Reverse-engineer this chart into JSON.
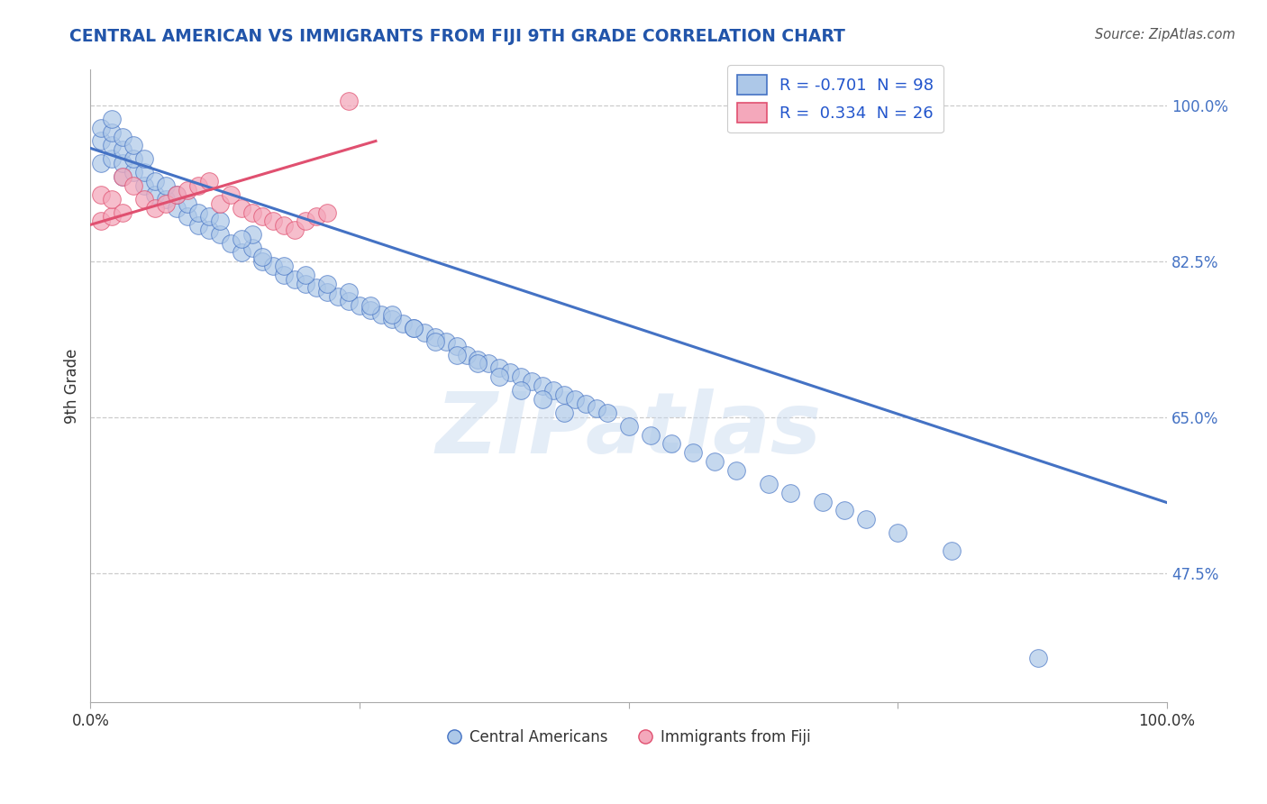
{
  "title": "CENTRAL AMERICAN VS IMMIGRANTS FROM FIJI 9TH GRADE CORRELATION CHART",
  "source_text": "Source: ZipAtlas.com",
  "ylabel": "9th Grade",
  "xlim": [
    0.0,
    1.0
  ],
  "ylim": [
    0.33,
    1.04
  ],
  "x_ticks": [
    0.0,
    0.25,
    0.5,
    0.75,
    1.0
  ],
  "x_tick_labels": [
    "0.0%",
    "",
    "",
    "",
    "100.0%"
  ],
  "y_tick_labels_right": [
    "47.5%",
    "65.0%",
    "82.5%",
    "100.0%"
  ],
  "y_ticks_right": [
    0.475,
    0.65,
    0.825,
    1.0
  ],
  "blue_color": "#adc8e8",
  "pink_color": "#f4a8bb",
  "blue_line_color": "#4472c4",
  "pink_line_color": "#e05070",
  "blue_legend_R": "R = -0.701",
  "blue_legend_N": "N = 98",
  "pink_legend_R": "R =  0.334",
  "pink_legend_N": "N = 26",
  "watermark": "ZIPatlas",
  "blue_scatter_x": [
    0.01,
    0.01,
    0.01,
    0.02,
    0.02,
    0.02,
    0.02,
    0.03,
    0.03,
    0.03,
    0.03,
    0.04,
    0.04,
    0.04,
    0.05,
    0.05,
    0.05,
    0.06,
    0.06,
    0.07,
    0.07,
    0.08,
    0.08,
    0.09,
    0.09,
    0.1,
    0.1,
    0.11,
    0.11,
    0.12,
    0.13,
    0.14,
    0.15,
    0.15,
    0.16,
    0.17,
    0.18,
    0.19,
    0.2,
    0.21,
    0.22,
    0.23,
    0.24,
    0.25,
    0.26,
    0.27,
    0.28,
    0.29,
    0.3,
    0.31,
    0.32,
    0.33,
    0.34,
    0.35,
    0.36,
    0.37,
    0.38,
    0.39,
    0.4,
    0.41,
    0.42,
    0.43,
    0.44,
    0.45,
    0.46,
    0.47,
    0.48,
    0.5,
    0.52,
    0.54,
    0.56,
    0.58,
    0.6,
    0.63,
    0.65,
    0.68,
    0.7,
    0.72,
    0.75,
    0.8,
    0.12,
    0.14,
    0.16,
    0.18,
    0.2,
    0.22,
    0.24,
    0.26,
    0.28,
    0.3,
    0.32,
    0.34,
    0.36,
    0.38,
    0.4,
    0.42,
    0.44,
    0.88
  ],
  "blue_scatter_y": [
    0.935,
    0.96,
    0.975,
    0.94,
    0.955,
    0.97,
    0.985,
    0.92,
    0.935,
    0.95,
    0.965,
    0.925,
    0.94,
    0.955,
    0.91,
    0.925,
    0.94,
    0.9,
    0.915,
    0.895,
    0.91,
    0.885,
    0.9,
    0.875,
    0.89,
    0.865,
    0.88,
    0.86,
    0.875,
    0.855,
    0.845,
    0.835,
    0.84,
    0.855,
    0.825,
    0.82,
    0.81,
    0.805,
    0.8,
    0.795,
    0.79,
    0.785,
    0.78,
    0.775,
    0.77,
    0.765,
    0.76,
    0.755,
    0.75,
    0.745,
    0.74,
    0.735,
    0.73,
    0.72,
    0.715,
    0.71,
    0.705,
    0.7,
    0.695,
    0.69,
    0.685,
    0.68,
    0.675,
    0.67,
    0.665,
    0.66,
    0.655,
    0.64,
    0.63,
    0.62,
    0.61,
    0.6,
    0.59,
    0.575,
    0.565,
    0.555,
    0.545,
    0.535,
    0.52,
    0.5,
    0.87,
    0.85,
    0.83,
    0.82,
    0.81,
    0.8,
    0.79,
    0.775,
    0.765,
    0.75,
    0.735,
    0.72,
    0.71,
    0.695,
    0.68,
    0.67,
    0.655,
    0.38
  ],
  "pink_scatter_x": [
    0.01,
    0.01,
    0.02,
    0.02,
    0.03,
    0.03,
    0.04,
    0.05,
    0.06,
    0.07,
    0.08,
    0.09,
    0.1,
    0.11,
    0.12,
    0.13,
    0.14,
    0.15,
    0.16,
    0.17,
    0.18,
    0.19,
    0.2,
    0.21,
    0.22,
    0.24
  ],
  "pink_scatter_y": [
    0.87,
    0.9,
    0.875,
    0.895,
    0.88,
    0.92,
    0.91,
    0.895,
    0.885,
    0.89,
    0.9,
    0.905,
    0.91,
    0.915,
    0.89,
    0.9,
    0.885,
    0.88,
    0.875,
    0.87,
    0.865,
    0.86,
    0.87,
    0.875,
    0.88,
    1.005
  ],
  "blue_line_x": [
    0.0,
    1.0
  ],
  "blue_line_y": [
    0.952,
    0.554
  ],
  "pink_line_x": [
    0.0,
    0.265
  ],
  "pink_line_y": [
    0.866,
    0.96
  ]
}
